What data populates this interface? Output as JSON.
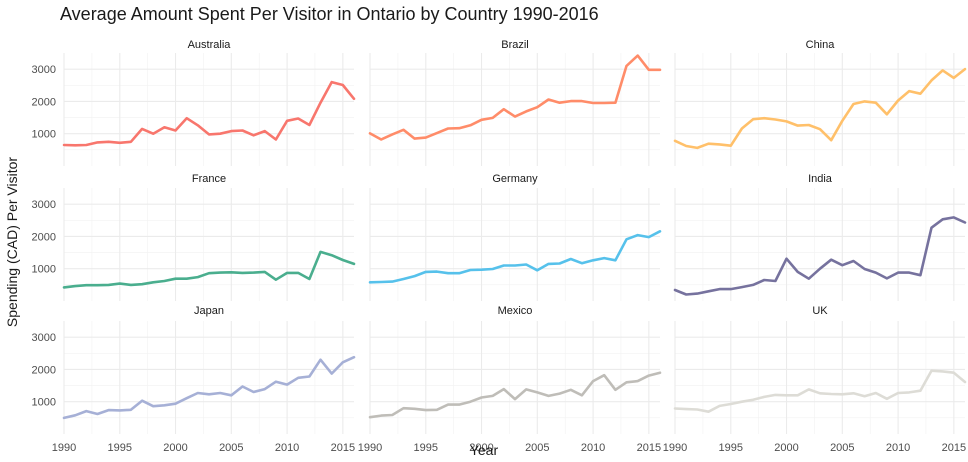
{
  "chart_data": {
    "type": "line",
    "title": "Average Amount Spent Per Visitor in Ontario by Country 1990-2016",
    "xlabel": "Year",
    "ylabel": "Spending (CAD) Per Visitor",
    "xlim": [
      1990,
      2016
    ],
    "ylim": [
      0,
      3500
    ],
    "x_ticks": [
      "1990",
      "1995",
      "2000",
      "2005",
      "2010",
      "2015"
    ],
    "y_ticks": [
      "1000",
      "2000",
      "3000"
    ],
    "grid": true,
    "legend": "none",
    "x": [
      1990,
      1991,
      1992,
      1993,
      1994,
      1995,
      1996,
      1997,
      1998,
      1999,
      2000,
      2001,
      2002,
      2003,
      2004,
      2005,
      2006,
      2007,
      2008,
      2009,
      2010,
      2011,
      2012,
      2013,
      2014,
      2015,
      2016
    ],
    "series": [
      {
        "name": "Australia",
        "color": "#F8766D",
        "values": [
          650,
          640,
          650,
          730,
          750,
          720,
          750,
          1150,
          1000,
          1200,
          1100,
          1480,
          1260,
          980,
          1000,
          1080,
          1100,
          950,
          1080,
          820,
          1400,
          1470,
          1270,
          1960,
          2600,
          2510,
          2080
        ]
      },
      {
        "name": "Brazil",
        "color": "#FF8C69",
        "values": [
          1010,
          820,
          980,
          1120,
          850,
          880,
          1020,
          1160,
          1170,
          1260,
          1430,
          1490,
          1760,
          1530,
          1690,
          1820,
          2060,
          1960,
          2010,
          2010,
          1950,
          1950,
          1960,
          3100,
          3420,
          2980,
          2980
        ]
      },
      {
        "name": "China",
        "color": "#FFC06A",
        "values": [
          780,
          620,
          560,
          690,
          670,
          630,
          1160,
          1450,
          1480,
          1440,
          1380,
          1250,
          1270,
          1140,
          800,
          1400,
          1920,
          2000,
          1960,
          1600,
          2030,
          2320,
          2240,
          2650,
          2960,
          2730,
          3000
        ]
      },
      {
        "name": "France",
        "color": "#4AAE8E",
        "values": [
          420,
          460,
          490,
          490,
          500,
          540,
          500,
          520,
          580,
          620,
          690,
          690,
          740,
          860,
          880,
          890,
          870,
          880,
          900,
          660,
          870,
          870,
          680,
          1520,
          1420,
          1270,
          1150
        ]
      },
      {
        "name": "Germany",
        "color": "#56C1EB",
        "values": [
          580,
          590,
          600,
          680,
          770,
          900,
          910,
          860,
          860,
          960,
          970,
          990,
          1100,
          1100,
          1130,
          950,
          1150,
          1160,
          1300,
          1170,
          1260,
          1330,
          1260,
          1910,
          2040,
          1980,
          2160
        ]
      },
      {
        "name": "India",
        "color": "#76729E",
        "values": [
          340,
          200,
          230,
          300,
          370,
          370,
          430,
          500,
          650,
          620,
          1310,
          900,
          690,
          1000,
          1280,
          1110,
          1240,
          990,
          880,
          700,
          880,
          880,
          800,
          2270,
          2530,
          2590,
          2430
        ]
      },
      {
        "name": "Japan",
        "color": "#A6B0D6",
        "values": [
          500,
          580,
          710,
          620,
          740,
          730,
          750,
          1030,
          860,
          890,
          940,
          1110,
          1270,
          1230,
          1270,
          1200,
          1470,
          1300,
          1390,
          1620,
          1530,
          1740,
          1780,
          2300,
          1870,
          2220,
          2380
        ]
      },
      {
        "name": "Mexico",
        "color": "#BFBDB8",
        "values": [
          520,
          570,
          590,
          800,
          780,
          740,
          750,
          910,
          910,
          1000,
          1130,
          1180,
          1390,
          1080,
          1380,
          1290,
          1180,
          1250,
          1370,
          1200,
          1640,
          1820,
          1370,
          1600,
          1640,
          1810,
          1900
        ]
      },
      {
        "name": "UK",
        "color": "#DDDCD6",
        "values": [
          790,
          770,
          760,
          690,
          870,
          930,
          1000,
          1060,
          1150,
          1210,
          1200,
          1200,
          1380,
          1260,
          1240,
          1230,
          1260,
          1170,
          1270,
          1090,
          1270,
          1290,
          1340,
          1960,
          1940,
          1900,
          1610
        ]
      }
    ]
  }
}
